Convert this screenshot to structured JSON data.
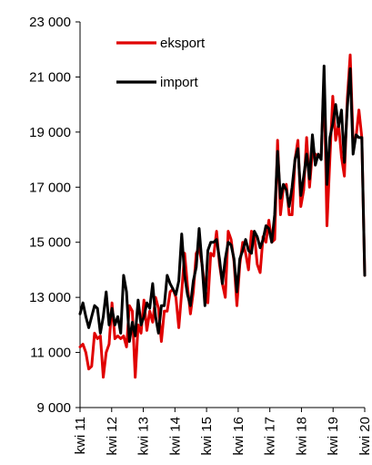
{
  "chart_data": {
    "type": "line",
    "title": "",
    "xlabel": "",
    "ylabel": "",
    "ylim": [
      9000,
      23000
    ],
    "y_ticks": [
      9000,
      11000,
      13000,
      15000,
      17000,
      19000,
      21000,
      23000
    ],
    "y_tick_labels": [
      "9 000",
      "11 000",
      "13 000",
      "15 000",
      "17 000",
      "19 000",
      "21 000",
      "23 000"
    ],
    "x_tick_labels": [
      "kwi 11",
      "kwi 12",
      "kwi 13",
      "kwi 14",
      "kwi 15",
      "kwi 16",
      "kwi 17",
      "kwi 18",
      "kwi 19",
      "kwi 20"
    ],
    "x_tick_rotation": "vertical",
    "grid": false,
    "legend_position": "top-left",
    "series": [
      {
        "name": "eksport",
        "color": "#e00000",
        "values": [
          11200,
          11300,
          11000,
          10400,
          10500,
          11700,
          11500,
          11600,
          10100,
          11000,
          11300,
          12800,
          11500,
          11600,
          11500,
          11600,
          11200,
          12700,
          12500,
          10100,
          12000,
          11700,
          12900,
          11800,
          12500,
          12100,
          13000,
          12600,
          11400,
          12500,
          12500,
          13200,
          13300,
          13000,
          11900,
          13200,
          14600,
          13400,
          12400,
          13200,
          14600,
          14800,
          14200,
          13300,
          12800,
          14600,
          14500,
          15400,
          14200,
          13500,
          13000,
          15400,
          15100,
          14300,
          12700,
          14200,
          15000,
          14600,
          14000,
          15400,
          15300,
          14200,
          13900,
          15200,
          15000,
          15800,
          15000,
          15100,
          18700,
          16000,
          17000,
          17100,
          16000,
          16000,
          18000,
          18700,
          16300,
          16900,
          18800,
          17000,
          18300,
          18200,
          18100,
          18100,
          21000,
          15600,
          18000,
          20300,
          18700,
          19300,
          18100,
          17400,
          20200,
          21800,
          18700,
          18800,
          19800,
          18800,
          13800
        ]
      },
      {
        "name": "import",
        "color": "#000000",
        "values": [
          12400,
          12800,
          12300,
          11900,
          12300,
          12700,
          12600,
          11700,
          12300,
          13200,
          12000,
          12600,
          12000,
          12300,
          11700,
          13800,
          13200,
          11400,
          12100,
          11600,
          12900,
          12000,
          12300,
          12800,
          12600,
          13500,
          12300,
          11700,
          12700,
          12700,
          13800,
          13500,
          13300,
          13100,
          13600,
          15300,
          13800,
          13100,
          12700,
          13600,
          14100,
          15500,
          14200,
          12700,
          14700,
          15000,
          15000,
          15100,
          14400,
          13500,
          14400,
          15000,
          14900,
          14400,
          13200,
          14400,
          14700,
          15100,
          14700,
          14600,
          15400,
          15200,
          14800,
          15100,
          15600,
          15500,
          15000,
          16000,
          18300,
          16600,
          17100,
          16900,
          16300,
          17000,
          18000,
          18400,
          16700,
          17400,
          18200,
          17300,
          18900,
          17800,
          18200,
          18000,
          21400,
          17100,
          18800,
          19300,
          20000,
          19200,
          19800,
          17900,
          19900,
          21300,
          18200,
          18900,
          18800,
          18800,
          13800
        ]
      }
    ]
  }
}
